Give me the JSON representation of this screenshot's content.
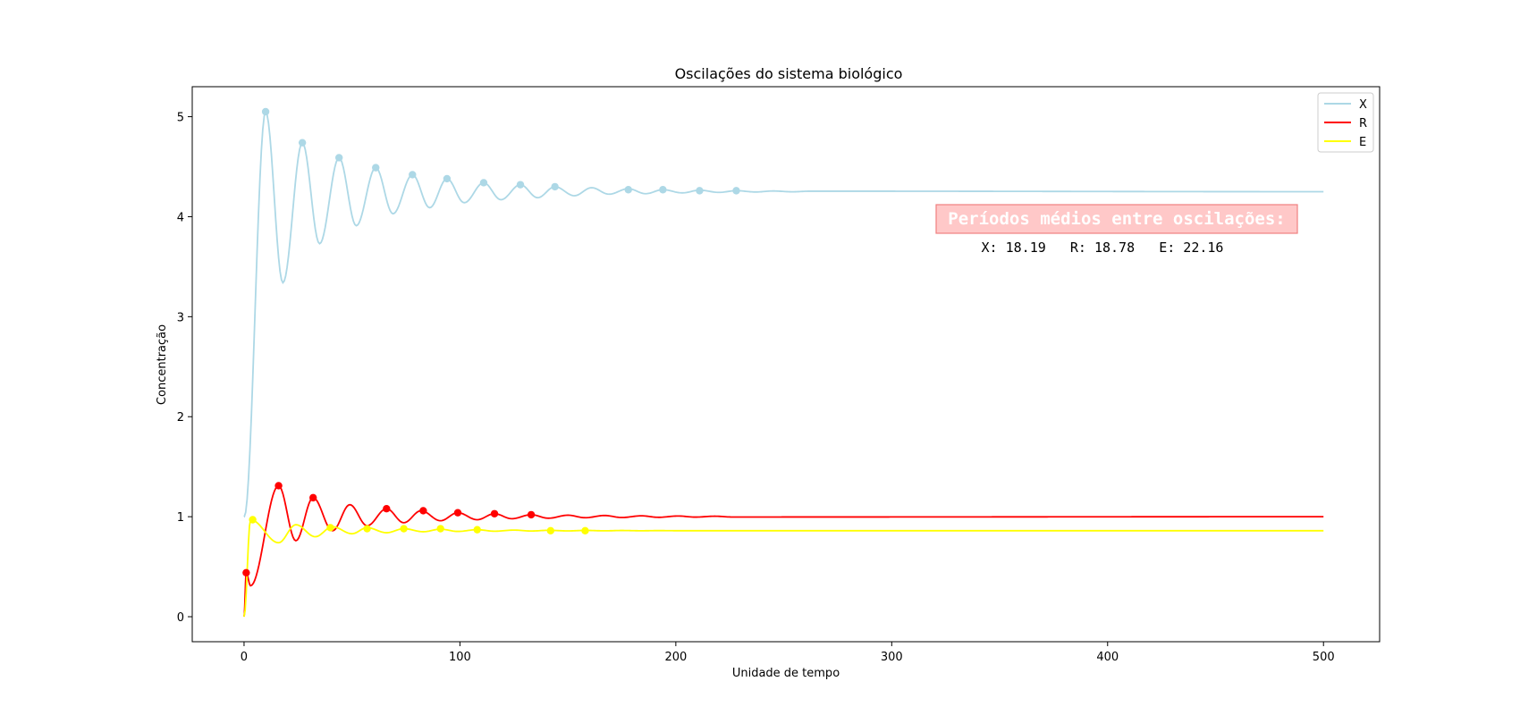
{
  "chart_data": {
    "type": "line",
    "title": "Oscilações do sistema biológico",
    "xlabel": "Unidade de tempo",
    "ylabel": "Concentração",
    "xlim": [
      -24,
      526
    ],
    "ylim": [
      -0.25,
      5.3
    ],
    "xticks": [
      0,
      100,
      200,
      300,
      400,
      500
    ],
    "yticks": [
      0,
      1,
      2,
      3,
      4,
      5
    ],
    "xtick_labels": [
      "0",
      "100",
      "200",
      "300",
      "400",
      "500"
    ],
    "ytick_labels": [
      "0",
      "1",
      "2",
      "3",
      "4",
      "5"
    ],
    "grid": false,
    "legend_position": "top-right",
    "x_end": 500,
    "series": [
      {
        "name": "X",
        "color": "#add8e6",
        "start": 1.0,
        "equilibrium": 4.25,
        "peaks": [
          [
            10,
            5.05
          ],
          [
            27,
            4.74
          ],
          [
            44,
            4.59
          ],
          [
            61,
            4.49
          ],
          [
            78,
            4.42
          ],
          [
            94,
            4.38
          ],
          [
            111,
            4.34
          ],
          [
            128,
            4.32
          ],
          [
            144,
            4.3
          ],
          [
            161,
            4.29
          ],
          [
            178,
            4.28
          ],
          [
            194,
            4.27
          ],
          [
            211,
            4.265
          ],
          [
            228,
            4.26
          ],
          [
            245,
            4.257
          ],
          [
            262,
            4.255
          ]
        ],
        "troughs": [
          [
            0.1,
            1.0
          ],
          [
            18,
            3.34
          ],
          [
            35,
            3.73
          ],
          [
            52,
            3.91
          ],
          [
            69,
            4.03
          ],
          [
            86,
            4.09
          ],
          [
            102,
            4.14
          ],
          [
            119,
            4.17
          ],
          [
            136,
            4.19
          ],
          [
            153,
            4.21
          ],
          [
            169,
            4.225
          ],
          [
            186,
            4.23
          ],
          [
            203,
            4.238
          ],
          [
            220,
            4.243
          ],
          [
            237,
            4.247
          ],
          [
            254,
            4.249
          ]
        ],
        "markers": [
          [
            10,
            5.05
          ],
          [
            27,
            4.74
          ],
          [
            44,
            4.59
          ],
          [
            61,
            4.49
          ],
          [
            78,
            4.42
          ],
          [
            94,
            4.38
          ],
          [
            111,
            4.34
          ],
          [
            128,
            4.32
          ],
          [
            144,
            4.3
          ],
          [
            178,
            4.27
          ],
          [
            194,
            4.27
          ],
          [
            211,
            4.26
          ],
          [
            228,
            4.26
          ]
        ]
      },
      {
        "name": "R",
        "color": "#ff0000",
        "start": 0.0,
        "equilibrium": 1.0,
        "peaks": [
          [
            1,
            0.44
          ],
          [
            16,
            1.31
          ],
          [
            32,
            1.19
          ],
          [
            49,
            1.12
          ],
          [
            66,
            1.08
          ],
          [
            82,
            1.06
          ],
          [
            99,
            1.04
          ],
          [
            116,
            1.03
          ],
          [
            133,
            1.02
          ],
          [
            150,
            1.015
          ],
          [
            167,
            1.012
          ],
          [
            184,
            1.009
          ],
          [
            201,
            1.007
          ],
          [
            218,
            1.005
          ]
        ],
        "troughs": [
          [
            3,
            0.31
          ],
          [
            24,
            0.76
          ],
          [
            41,
            0.86
          ],
          [
            57,
            0.91
          ],
          [
            74,
            0.94
          ],
          [
            91,
            0.96
          ],
          [
            108,
            0.97
          ],
          [
            124,
            0.98
          ],
          [
            141,
            0.985
          ],
          [
            158,
            0.99
          ],
          [
            175,
            0.992
          ],
          [
            192,
            0.994
          ],
          [
            209,
            0.996
          ],
          [
            226,
            0.997
          ]
        ],
        "markers": [
          [
            1,
            0.44
          ],
          [
            16,
            1.31
          ],
          [
            32,
            1.19
          ],
          [
            66,
            1.08
          ],
          [
            83,
            1.06
          ],
          [
            99,
            1.04
          ],
          [
            116,
            1.03
          ],
          [
            133,
            1.02
          ]
        ]
      },
      {
        "name": "E",
        "color": "#ffff00",
        "start": 0.0,
        "equilibrium": 0.86,
        "peaks": [
          [
            3,
            0.97
          ],
          [
            24,
            0.92
          ],
          [
            41,
            0.9
          ],
          [
            57,
            0.89
          ],
          [
            74,
            0.88
          ],
          [
            91,
            0.875
          ],
          [
            108,
            0.87
          ],
          [
            125,
            0.866
          ],
          [
            141,
            0.864
          ],
          [
            158,
            0.863
          ],
          [
            175,
            0.862
          ],
          [
            192,
            0.861
          ]
        ],
        "troughs": [
          [
            16,
            0.74
          ],
          [
            33,
            0.8
          ],
          [
            50,
            0.83
          ],
          [
            66,
            0.84
          ],
          [
            83,
            0.85
          ],
          [
            99,
            0.853
          ],
          [
            116,
            0.855
          ],
          [
            133,
            0.857
          ],
          [
            150,
            0.858
          ],
          [
            167,
            0.859
          ],
          [
            184,
            0.8595
          ],
          [
            201,
            0.86
          ]
        ],
        "markers": [
          [
            4,
            0.97
          ],
          [
            40,
            0.89
          ],
          [
            57,
            0.88
          ],
          [
            74,
            0.88
          ],
          [
            91,
            0.88
          ],
          [
            108,
            0.87
          ],
          [
            142,
            0.86
          ],
          [
            158,
            0.86
          ]
        ]
      }
    ],
    "annotation": {
      "title": "Períodos médios entre oscilações:",
      "values": "X: 18.19   R: 18.78   E: 22.16",
      "box_color": "#ffc8c8",
      "border_color": "#f08080"
    }
  }
}
